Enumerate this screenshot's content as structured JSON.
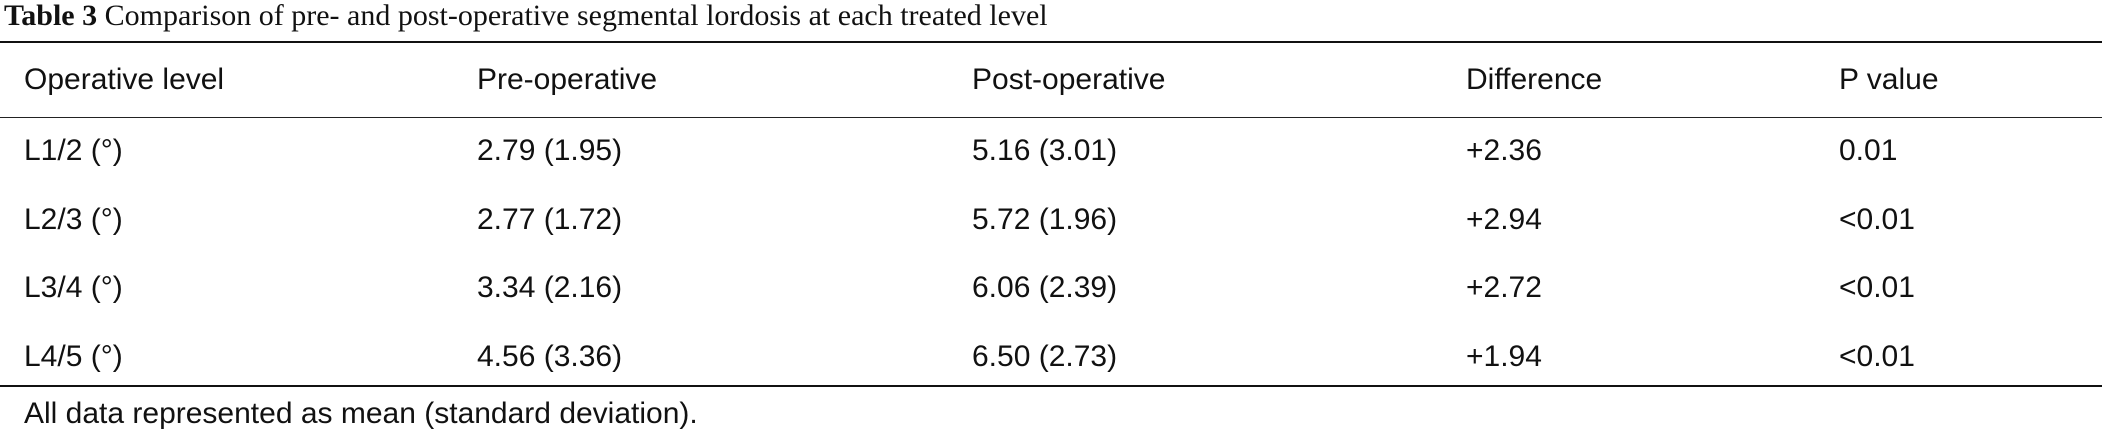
{
  "caption": {
    "label": "Table 3",
    "text": "Comparison of pre- and post-operative segmental lordosis at each treated level"
  },
  "table": {
    "headers": [
      "Operative level",
      "Pre-operative",
      "Post-operative",
      "Difference",
      "P value"
    ],
    "rows": [
      [
        "L1/2 (°)",
        "2.79 (1.95)",
        "5.16 (3.01)",
        "+2.36",
        "0.01"
      ],
      [
        "L2/3 (°)",
        "2.77 (1.72)",
        "5.72 (1.96)",
        "+2.94",
        "<0.01"
      ],
      [
        "L3/4 (°)",
        "3.34 (2.16)",
        "6.06 (2.39)",
        "+2.72",
        "<0.01"
      ],
      [
        "L4/5 (°)",
        "4.56 (3.36)",
        "6.50 (2.73)",
        "+1.94",
        "<0.01"
      ]
    ]
  },
  "footnote": "All data represented as mean (standard deviation)."
}
